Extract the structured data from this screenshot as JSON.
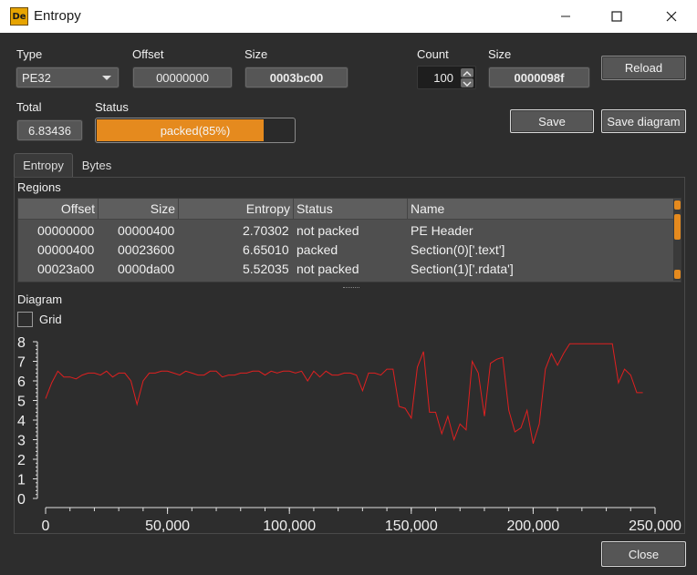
{
  "window": {
    "title": "Entropy",
    "icon_text": "De"
  },
  "fields": {
    "type_label": "Type",
    "type_value": "PE32",
    "offset_label": "Offset",
    "offset_value": "00000000",
    "size_label": "Size",
    "size_value": "0003bc00",
    "count_label": "Count",
    "count_value": "100",
    "size2_label": "Size",
    "size2_value": "0000098f",
    "total_label": "Total",
    "total_value": "6.83436",
    "status_label": "Status",
    "status_value": "packed(85%)",
    "status_percent": 85
  },
  "buttons": {
    "reload": "Reload",
    "save": "Save",
    "save_diagram": "Save diagram",
    "close": "Close"
  },
  "tabs": [
    {
      "label": "Entropy",
      "active": true
    },
    {
      "label": "Bytes",
      "active": false
    }
  ],
  "regions": {
    "label": "Regions",
    "columns": [
      "Offset",
      "Size",
      "Entropy",
      "Status",
      "Name"
    ],
    "rows": [
      {
        "offset": "00000000",
        "size": "00000400",
        "entropy": "2.70302",
        "status": "not packed",
        "name": "PE Header"
      },
      {
        "offset": "00000400",
        "size": "00023600",
        "entropy": "6.65010",
        "status": "packed",
        "name": "Section(0)['.text']"
      },
      {
        "offset": "00023a00",
        "size": "0000da00",
        "entropy": "5.52035",
        "status": "not packed",
        "name": "Section(1)['.rdata']"
      }
    ]
  },
  "diagram": {
    "label": "Diagram",
    "grid_label": "Grid",
    "grid_checked": false
  },
  "chart_data": {
    "type": "line",
    "title": "",
    "xlabel": "",
    "ylabel": "",
    "xlim": [
      0,
      250000
    ],
    "ylim": [
      0,
      8
    ],
    "x_ticks": [
      "0",
      "50,000",
      "100,000",
      "150,000",
      "200,000",
      "250,000"
    ],
    "x_tick_values": [
      0,
      50000,
      100000,
      150000,
      200000,
      250000
    ],
    "y_ticks": [
      "0",
      "1",
      "2",
      "3",
      "4",
      "5",
      "6",
      "7",
      "8"
    ],
    "y_tick_values": [
      0,
      1,
      2,
      3,
      4,
      5,
      6,
      7,
      8
    ],
    "grid": false,
    "series_color": "#e02020",
    "series": [
      {
        "x": [
          0,
          2500,
          5000,
          7500,
          10000,
          12500,
          15000,
          17500,
          20000,
          22500,
          25000,
          27500,
          30000,
          32500,
          35000,
          37500,
          40000,
          42500,
          45000,
          47500,
          50000,
          52500,
          55000,
          57500,
          60000,
          62500,
          65000,
          67500,
          70000,
          72500,
          75000,
          77500,
          80000,
          82500,
          85000,
          87500,
          90000,
          92500,
          95000,
          97500,
          100000,
          102500,
          105000,
          107500,
          110000,
          112500,
          115000,
          117500,
          120000,
          122500,
          125000,
          127500,
          130000,
          132500,
          135000,
          137500,
          140000,
          142500,
          145000,
          147500,
          150000,
          152500,
          155000,
          157500,
          160000,
          162500,
          165000,
          167500,
          170000,
          172500,
          175000,
          177500,
          180000,
          182500,
          185000,
          187500,
          190000,
          192500,
          195000,
          197500,
          200000,
          202500,
          205000,
          207500,
          210000,
          212500,
          215000,
          217500,
          220000,
          222500,
          225000,
          227500,
          230000,
          232500,
          235000,
          237500,
          240000,
          242500,
          245000
        ],
        "values": [
          5.1,
          5.9,
          6.5,
          6.2,
          6.2,
          6.1,
          6.3,
          6.4,
          6.4,
          6.3,
          6.5,
          6.2,
          6.4,
          6.4,
          6.0,
          4.8,
          6.0,
          6.4,
          6.4,
          6.5,
          6.5,
          6.4,
          6.3,
          6.5,
          6.4,
          6.3,
          6.3,
          6.5,
          6.5,
          6.2,
          6.3,
          6.3,
          6.4,
          6.4,
          6.5,
          6.5,
          6.3,
          6.5,
          6.4,
          6.5,
          6.5,
          6.4,
          6.5,
          6.0,
          6.5,
          6.2,
          6.5,
          6.3,
          6.3,
          6.4,
          6.4,
          6.3,
          5.5,
          6.4,
          6.4,
          6.3,
          6.6,
          6.6,
          4.7,
          4.6,
          4.1,
          6.7,
          7.5,
          4.4,
          4.4,
          3.3,
          4.2,
          3.0,
          3.8,
          3.5,
          7.0,
          6.4,
          4.2,
          6.9,
          7.1,
          7.2,
          4.5,
          3.4,
          3.6,
          4.5,
          2.8,
          3.8,
          6.6,
          7.4,
          6.8,
          7.4,
          7.9,
          7.9,
          7.9,
          7.9,
          7.9,
          7.9,
          7.9,
          7.9,
          5.9,
          6.6,
          6.3,
          5.4,
          5.4
        ]
      }
    ]
  }
}
